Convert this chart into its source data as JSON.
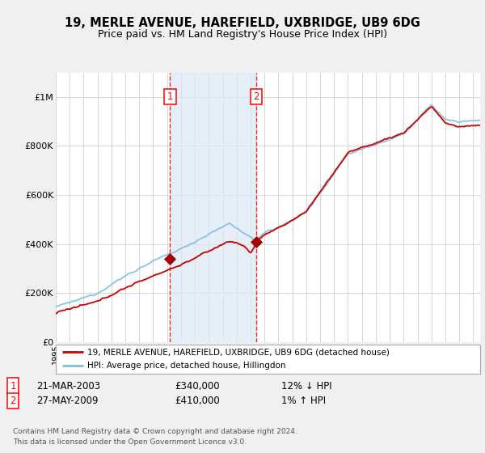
{
  "title1": "19, MERLE AVENUE, HAREFIELD, UXBRIDGE, UB9 6DG",
  "title2": "Price paid vs. HM Land Registry's House Price Index (HPI)",
  "ylim": [
    0,
    1100000
  ],
  "yticks": [
    0,
    200000,
    400000,
    600000,
    800000,
    1000000
  ],
  "ytick_labels": [
    "£0",
    "£200K",
    "£400K",
    "£600K",
    "£800K",
    "£1M"
  ],
  "bg_color": "#f5f5f5",
  "plot_bg_color": "#ffffff",
  "hpi_color": "#7fbfdf",
  "sale_color": "#cc0000",
  "sale1_x": 2003.22,
  "sale1_y": 340000,
  "sale2_x": 2009.41,
  "sale2_y": 410000,
  "legend_line1": "19, MERLE AVENUE, HAREFIELD, UXBRIDGE, UB9 6DG (detached house)",
  "legend_line2": "HPI: Average price, detached house, Hillingdon",
  "label1_date": "21-MAR-2003",
  "label1_price": "£340,000",
  "label1_hpi": "12% ↓ HPI",
  "label2_date": "27-MAY-2009",
  "label2_price": "£410,000",
  "label2_hpi": "1% ↑ HPI",
  "footer": "Contains HM Land Registry data © Crown copyright and database right 2024.\nThis data is licensed under the Open Government Licence v3.0.",
  "xmin": 1995,
  "xmax": 2025.5
}
